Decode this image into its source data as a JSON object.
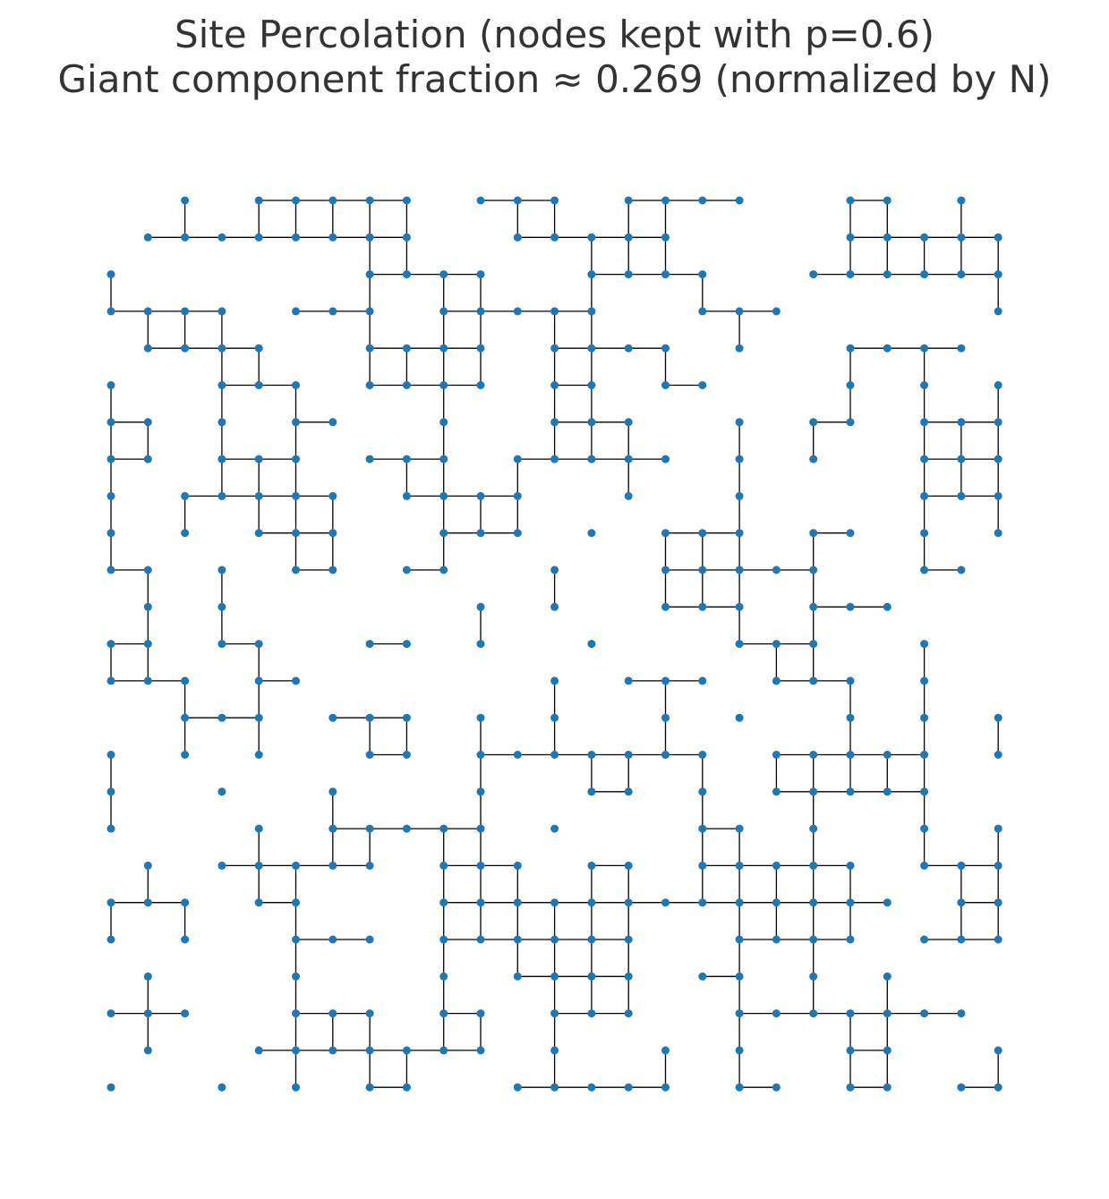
{
  "title": {
    "line1": "Site Percolation (nodes kept with p=0.6)",
    "line2": "Giant component fraction ≈ 0.269 (normalized by N)"
  },
  "colors": {
    "node": "#1f77b4",
    "edge": "#000000",
    "text": "#333333"
  },
  "graph": {
    "grid_size": 25,
    "rows": [
      "..#.######.####.#####..##.#",
      "-.#.#.#.#.#...#.#...#...#.#.#",
      ".#######-#..###.###..#######",
      ".........#.#...#...#...#####",
      "#.......#########.#.#...#####",
      "#.......#.#.#.#.#.#..#......#",
      "##.####.###.#.#######.###...#",
      "##.#.#.............#...#....",
      "#.....#.#.#.#.#.#.#.#......##",
      "#.####..#######.#.#.#...#####",
      "#..#.#.#.....#.#...#....#..#",
      "#.##.......#.#.#.#.........#",
      "#..#.#.#...........#.....#.##",
      "##.#####.......######.#..#.#",
      "#.#.##.#.#..##.##...........",
      "#.....###....#.#..#.#####..##",
      "#.#.#.#.#....#......#.#.#..##",
      "#....#.#.#..##.######..##..#",
      "#......#####..#.......#..##",
      "##.#..#.#...#....####.##.#..",
      "#.......#.........#.....#.##",
      "#.#.##...##...##..###.###.#.#",
      "#.........#.................",
      "#.......#......##.#...#..#",
      "...#.##.......#.......#....."
    ]
  },
  "chart_data": {
    "type": "network",
    "title": "Site Percolation (nodes kept with p=0.6)\nGiant component fraction ≈ 0.269 (normalized by N)",
    "lattice": "25x25 square grid",
    "p": 0.6,
    "giant_component_fraction": 0.269
  }
}
